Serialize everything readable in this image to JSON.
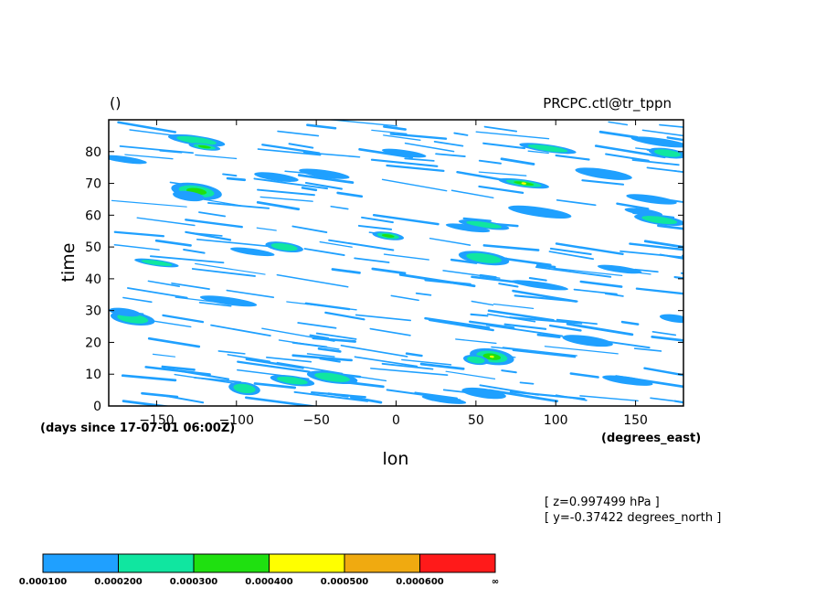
{
  "chart_data": {
    "type": "heatmap",
    "title_left": "()",
    "title_right": "PRCPC.ctl@tr_tppn",
    "xlabel": "lon",
    "ylabel": "time",
    "x_unit": "(degrees_east)",
    "y_unit": "(days since 17-07-01 06:00Z)",
    "xlim": [
      -180,
      180
    ],
    "ylim": [
      0,
      90
    ],
    "x_ticks": [
      -150,
      -100,
      -50,
      0,
      50,
      100,
      150
    ],
    "y_ticks": [
      0,
      10,
      20,
      30,
      40,
      50,
      60,
      70,
      80
    ],
    "info_lines": [
      "[ z=0.997499 hPa ]",
      "[ y=-0.37422 degrees_north ]"
    ],
    "colorbar": {
      "colors": [
        "#1fa0ff",
        "#10e6a0",
        "#1fe010",
        "#ffff00",
        "#f0aa10",
        "#ff1a1a"
      ],
      "labels": [
        "0.000100",
        "0.000200",
        "0.000300",
        "0.000400",
        "0.000500",
        "0.000600",
        "∞"
      ]
    },
    "features": [
      {
        "lon": -165,
        "t": 27.5,
        "lw": 14,
        "lh": 2.0,
        "level": 2
      },
      {
        "lon": -170,
        "t": 29.5,
        "lw": 10,
        "lh": 1.2,
        "level": 1
      },
      {
        "lon": -125,
        "t": 67.5,
        "lw": 16,
        "lh": 2.5,
        "level": 3
      },
      {
        "lon": -130,
        "t": 66.0,
        "lw": 10,
        "lh": 1.5,
        "level": 1
      },
      {
        "lon": -125,
        "t": 83.5,
        "lw": 18,
        "lh": 1.5,
        "level": 2
      },
      {
        "lon": -120,
        "t": 81.5,
        "lw": 10,
        "lh": 1.0,
        "level": 3
      },
      {
        "lon": -170,
        "t": 77.5,
        "lw": 14,
        "lh": 1.0,
        "level": 1
      },
      {
        "lon": -150,
        "t": 45.0,
        "lw": 14,
        "lh": 1.0,
        "level": 2
      },
      {
        "lon": -90,
        "t": 48.5,
        "lw": 14,
        "lh": 1.0,
        "level": 1
      },
      {
        "lon": -70,
        "t": 50.0,
        "lw": 12,
        "lh": 1.5,
        "level": 2
      },
      {
        "lon": -75,
        "t": 72.0,
        "lw": 14,
        "lh": 1.2,
        "level": 1
      },
      {
        "lon": -45,
        "t": 73.0,
        "lw": 16,
        "lh": 1.2,
        "level": 1
      },
      {
        "lon": -95,
        "t": 5.5,
        "lw": 10,
        "lh": 2.0,
        "level": 2
      },
      {
        "lon": -65,
        "t": 8.0,
        "lw": 14,
        "lh": 1.5,
        "level": 2
      },
      {
        "lon": -40,
        "t": 9.0,
        "lw": 16,
        "lh": 1.8,
        "level": 2
      },
      {
        "lon": -105,
        "t": 33.0,
        "lw": 18,
        "lh": 1.2,
        "level": 1
      },
      {
        "lon": -5,
        "t": 53.5,
        "lw": 10,
        "lh": 1.2,
        "level": 3
      },
      {
        "lon": 5,
        "t": 79.5,
        "lw": 14,
        "lh": 1.0,
        "level": 1
      },
      {
        "lon": 55,
        "t": 46.5,
        "lw": 16,
        "lh": 2.0,
        "level": 2
      },
      {
        "lon": 60,
        "t": 15.5,
        "lw": 14,
        "lh": 2.5,
        "level": 4
      },
      {
        "lon": 50,
        "t": 14.5,
        "lw": 8,
        "lh": 1.5,
        "level": 2
      },
      {
        "lon": 55,
        "t": 4.0,
        "lw": 14,
        "lh": 1.5,
        "level": 1
      },
      {
        "lon": 30,
        "t": 2.0,
        "lw": 14,
        "lh": 1.0,
        "level": 1
      },
      {
        "lon": 55,
        "t": 57.0,
        "lw": 16,
        "lh": 1.2,
        "level": 2
      },
      {
        "lon": 45,
        "t": 56.0,
        "lw": 14,
        "lh": 1.0,
        "level": 1
      },
      {
        "lon": 80,
        "t": 70.0,
        "lw": 16,
        "lh": 1.2,
        "level": 4
      },
      {
        "lon": 95,
        "t": 81.0,
        "lw": 18,
        "lh": 1.2,
        "level": 2
      },
      {
        "lon": 90,
        "t": 61.0,
        "lw": 20,
        "lh": 1.5,
        "level": 1
      },
      {
        "lon": 130,
        "t": 73.0,
        "lw": 18,
        "lh": 1.5,
        "level": 1
      },
      {
        "lon": 160,
        "t": 65.0,
        "lw": 16,
        "lh": 1.2,
        "level": 1
      },
      {
        "lon": 165,
        "t": 58.5,
        "lw": 16,
        "lh": 1.5,
        "level": 2
      },
      {
        "lon": 155,
        "t": 61.0,
        "lw": 12,
        "lh": 1.0,
        "level": 1
      },
      {
        "lon": 165,
        "t": 83.0,
        "lw": 18,
        "lh": 1.2,
        "level": 1
      },
      {
        "lon": 170,
        "t": 79.5,
        "lw": 12,
        "lh": 1.5,
        "level": 2
      },
      {
        "lon": 120,
        "t": 20.5,
        "lw": 16,
        "lh": 1.5,
        "level": 1
      },
      {
        "lon": 145,
        "t": 8.0,
        "lw": 16,
        "lh": 1.2,
        "level": 1
      },
      {
        "lon": 140,
        "t": 43.0,
        "lw": 14,
        "lh": 1.0,
        "level": 1
      },
      {
        "lon": 90,
        "t": 38.0,
        "lw": 18,
        "lh": 1.0,
        "level": 1
      },
      {
        "lon": 175,
        "t": 27.5,
        "lw": 10,
        "lh": 1.2,
        "level": 1
      }
    ]
  }
}
